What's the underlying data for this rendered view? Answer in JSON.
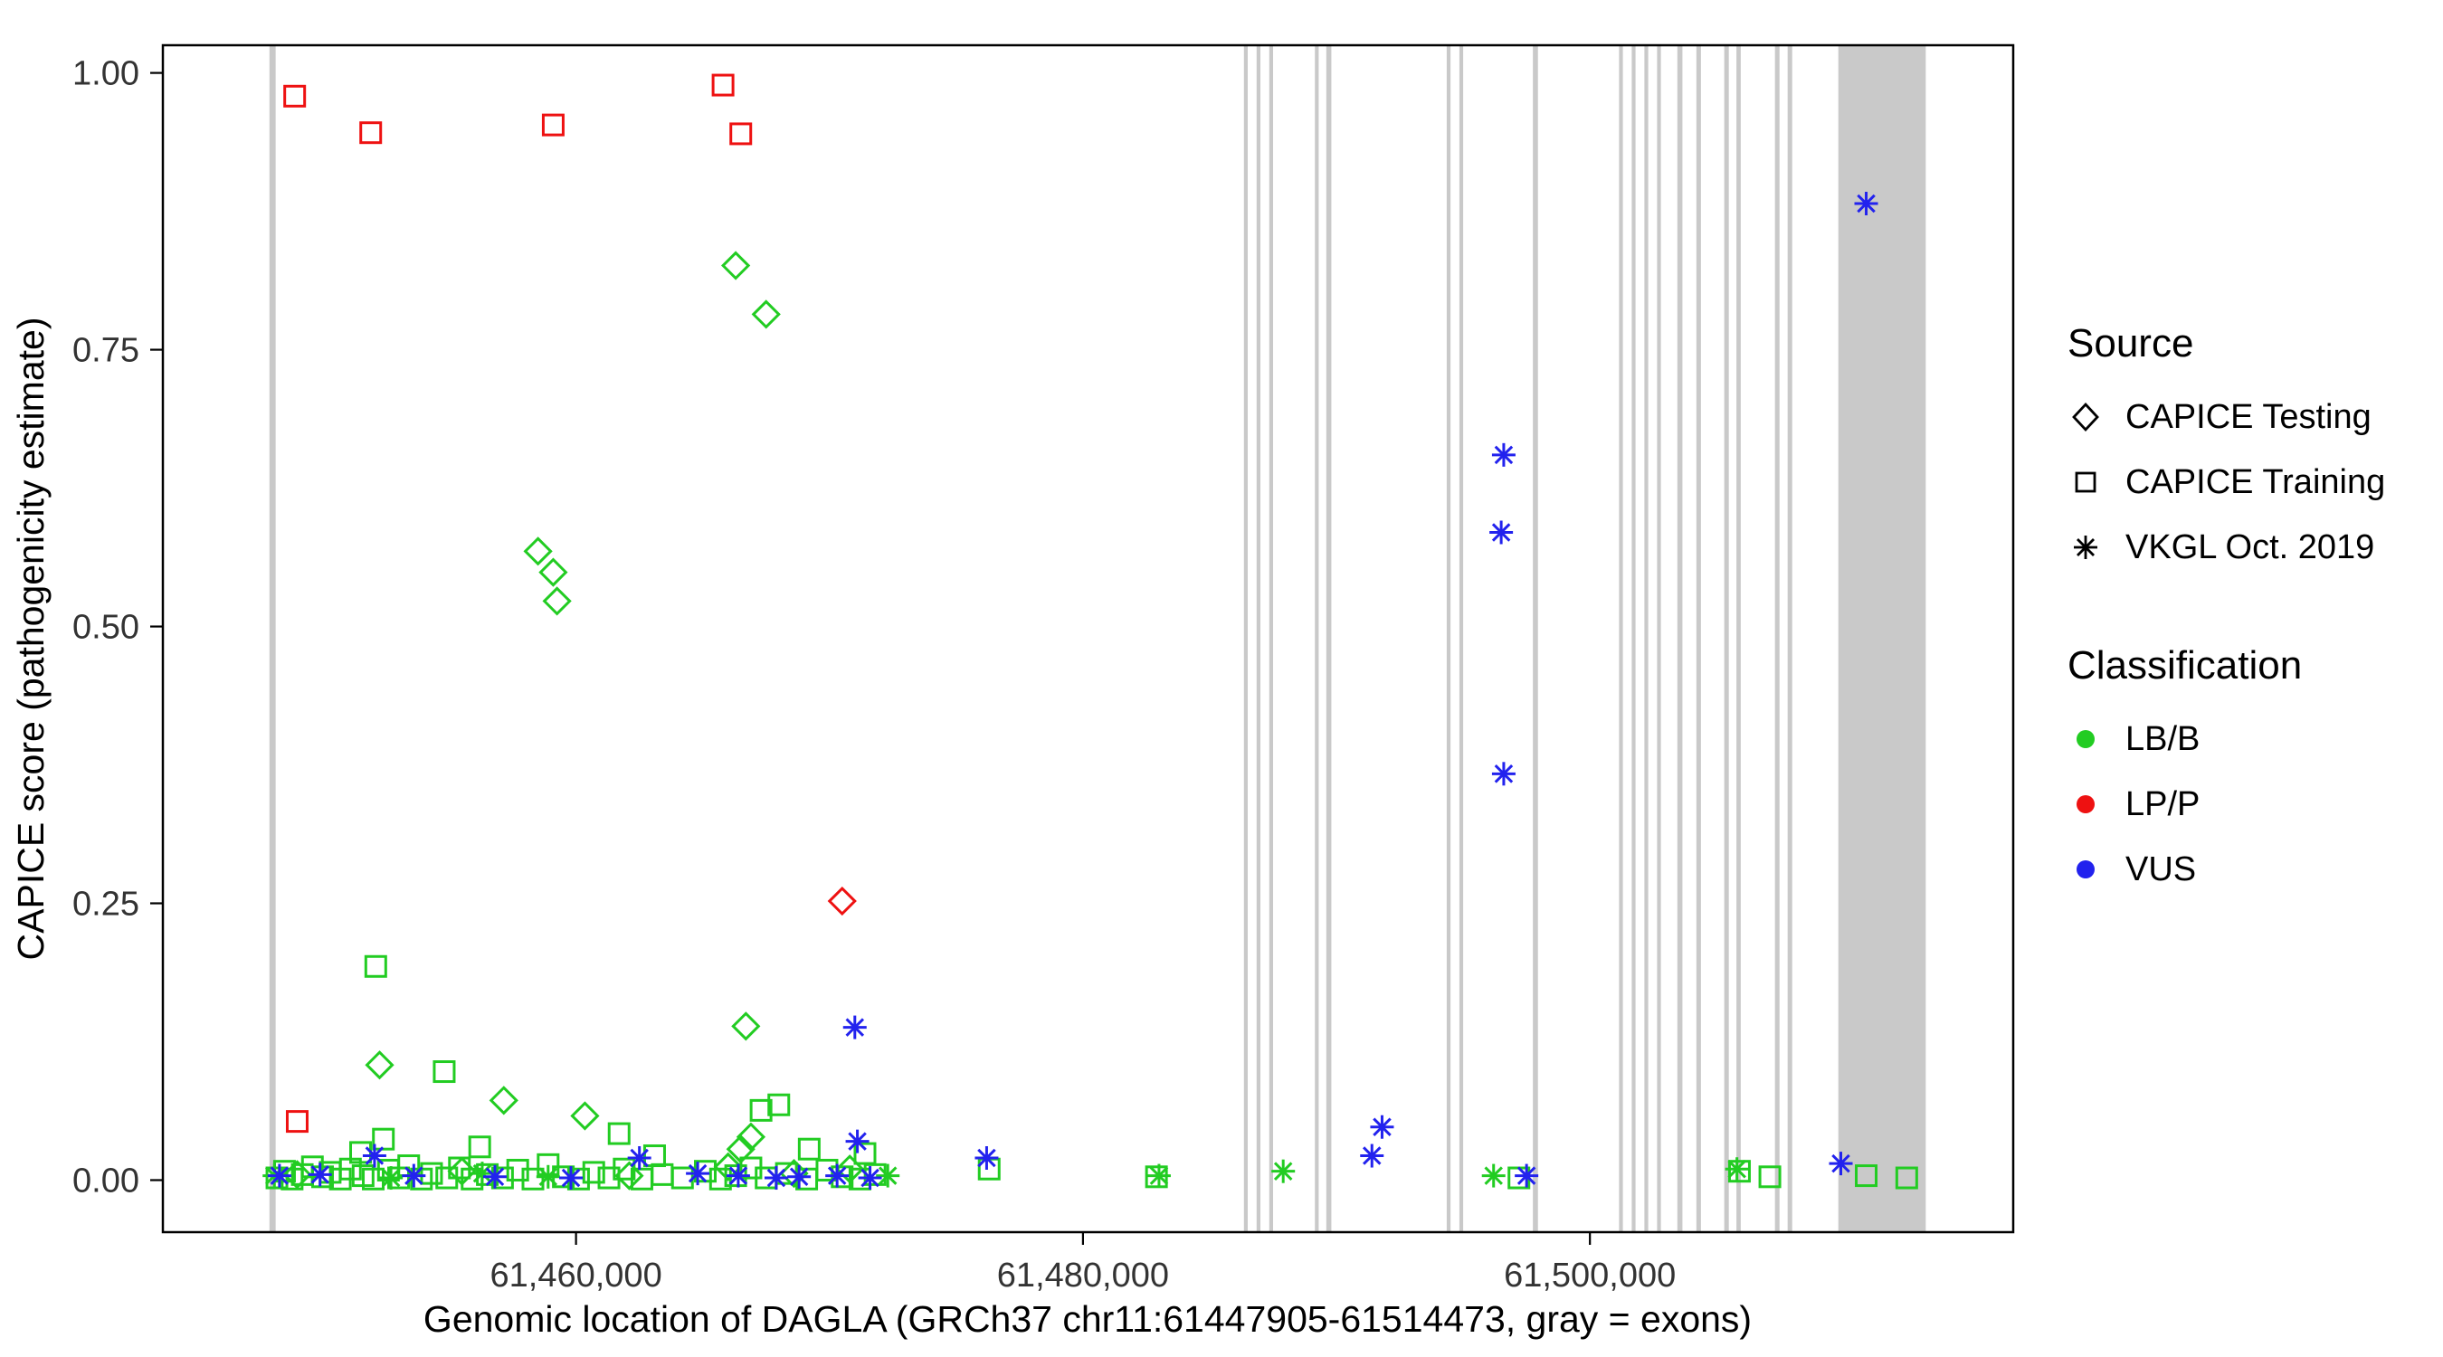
{
  "figure": {
    "xlabel": "Genomic location of DAGLA (GRCh37 chr11:61447905-61514473, gray = exons)",
    "ylabel": "CAPICE score (pathogenicity estimate)"
  },
  "legend": {
    "source": {
      "title": "Source",
      "items": [
        {
          "label": "CAPICE Testing",
          "marker": "diamond-open"
        },
        {
          "label": "CAPICE Training",
          "marker": "square-open"
        },
        {
          "label": "VKGL Oct. 2019",
          "marker": "asterisk"
        }
      ]
    },
    "classification": {
      "title": "Classification",
      "items": [
        {
          "label": "LB/B",
          "color": "#22cc22"
        },
        {
          "label": "LP/P",
          "color": "#ee1111"
        },
        {
          "label": "VUS",
          "color": "#2222ee"
        }
      ]
    }
  },
  "chart_data": {
    "type": "scatter",
    "title": "",
    "xlabel": "Genomic location of DAGLA (GRCh37 chr11:61447905-61514473, gray = exons)",
    "ylabel": "CAPICE score (pathogenicity estimate)",
    "xlim": [
      61443700,
      61516700
    ],
    "ylim": [
      -0.047,
      1.025
    ],
    "x_ticks": {
      "values": [
        61460000,
        61480000,
        61500000
      ],
      "labels": [
        "61,460,000",
        "61,480,000",
        "61,500,000"
      ]
    },
    "y_ticks": {
      "values": [
        0,
        0.25,
        0.5,
        0.75,
        1
      ],
      "labels": [
        "0.00",
        "0.25",
        "0.50",
        "0.75",
        "1.00"
      ]
    },
    "grid": false,
    "legend_position": "right",
    "exon_color": "#c9c9c9",
    "exons": [
      [
        61447905,
        61448150
      ],
      [
        61486350,
        61486500
      ],
      [
        61486850,
        61487000
      ],
      [
        61487350,
        61487500
      ],
      [
        61489150,
        61489300
      ],
      [
        61489600,
        61489800
      ],
      [
        61494350,
        61494500
      ],
      [
        61494850,
        61495000
      ],
      [
        61497750,
        61497950
      ],
      [
        61501150,
        61501300
      ],
      [
        61501650,
        61501800
      ],
      [
        61502150,
        61502300
      ],
      [
        61502650,
        61502800
      ],
      [
        61503450,
        61503650
      ],
      [
        61504200,
        61504380
      ],
      [
        61505300,
        61505480
      ],
      [
        61505780,
        61505950
      ],
      [
        61507300,
        61507480
      ],
      [
        61507800,
        61507980
      ],
      [
        61509800,
        61513250
      ]
    ],
    "series": [
      {
        "source": "CAPICE Testing",
        "classification": "LB/B",
        "marker": "diamond-open",
        "color": "#22cc22",
        "points": [
          [
            61466300,
            0.826
          ],
          [
            61467500,
            0.782
          ],
          [
            61458500,
            0.568
          ],
          [
            61459100,
            0.549
          ],
          [
            61459250,
            0.523
          ],
          [
            61466700,
            0.139
          ],
          [
            61452250,
            0.104
          ],
          [
            61457150,
            0.072
          ],
          [
            61460350,
            0.058
          ],
          [
            61466900,
            0.039
          ],
          [
            61466500,
            0.028
          ],
          [
            61449000,
            0.005
          ],
          [
            61455500,
            0.008
          ],
          [
            61462100,
            0.004
          ],
          [
            61466000,
            0.012
          ],
          [
            61468600,
            0.006
          ],
          [
            61470800,
            0.01
          ]
        ]
      },
      {
        "source": "CAPICE Testing",
        "classification": "LP/P",
        "marker": "diamond-open",
        "color": "#ee1111",
        "points": [
          [
            61470500,
            0.252
          ]
        ]
      },
      {
        "source": "CAPICE Training",
        "classification": "LB/B",
        "marker": "square-open",
        "color": "#22cc22",
        "points": [
          [
            61452100,
            0.193
          ],
          [
            61454800,
            0.098
          ],
          [
            61468000,
            0.068
          ],
          [
            61467300,
            0.063
          ],
          [
            61461700,
            0.042
          ],
          [
            61452400,
            0.037
          ],
          [
            61456200,
            0.03
          ],
          [
            61469200,
            0.028
          ],
          [
            61451500,
            0.025
          ],
          [
            61471400,
            0.024
          ],
          [
            61463100,
            0.022
          ],
          [
            61448200,
            0.002
          ],
          [
            61448500,
            0.008
          ],
          [
            61448800,
            0.001
          ],
          [
            61449200,
            0.005
          ],
          [
            61449600,
            0.012
          ],
          [
            61450000,
            0.003
          ],
          [
            61450300,
            0.007
          ],
          [
            61450700,
            0.001
          ],
          [
            61451100,
            0.01
          ],
          [
            61451600,
            0.004
          ],
          [
            61452000,
            0.001
          ],
          [
            61452600,
            0.009
          ],
          [
            61453000,
            0.002
          ],
          [
            61453400,
            0.013
          ],
          [
            61453900,
            0.001
          ],
          [
            61454300,
            0.006
          ],
          [
            61454900,
            0.002
          ],
          [
            61455400,
            0.011
          ],
          [
            61455900,
            0.001
          ],
          [
            61456500,
            0.005
          ],
          [
            61457100,
            0.002
          ],
          [
            61457700,
            0.009
          ],
          [
            61458300,
            0.001
          ],
          [
            61458900,
            0.014
          ],
          [
            61459500,
            0.003
          ],
          [
            61460100,
            0.001
          ],
          [
            61460700,
            0.007
          ],
          [
            61461300,
            0.002
          ],
          [
            61461900,
            0.01
          ],
          [
            61462600,
            0.001
          ],
          [
            61463400,
            0.005
          ],
          [
            61464200,
            0.002
          ],
          [
            61465100,
            0.008
          ],
          [
            61465700,
            0.001
          ],
          [
            61466300,
            0.004
          ],
          [
            61466900,
            0.011
          ],
          [
            61467500,
            0.002
          ],
          [
            61468300,
            0.006
          ],
          [
            61469100,
            0.001
          ],
          [
            61469900,
            0.009
          ],
          [
            61470500,
            0.003
          ],
          [
            61471200,
            0.001
          ],
          [
            61471800,
            0.005
          ],
          [
            61476300,
            0.01
          ],
          [
            61482900,
            0.003
          ],
          [
            61497200,
            0.002
          ],
          [
            61505900,
            0.008
          ],
          [
            61507100,
            0.003
          ],
          [
            61510900,
            0.004
          ],
          [
            61512500,
            0.002
          ]
        ]
      },
      {
        "source": "CAPICE Training",
        "classification": "LP/P",
        "marker": "square-open",
        "color": "#ee1111",
        "points": [
          [
            61448900,
            0.979
          ],
          [
            61451900,
            0.946
          ],
          [
            61459100,
            0.953
          ],
          [
            61465800,
            0.989
          ],
          [
            61466500,
            0.945
          ],
          [
            61449000,
            0.053
          ]
        ]
      },
      {
        "source": "VKGL Oct. 2019",
        "classification": "LB/B",
        "marker": "asterisk",
        "color": "#22cc22",
        "points": [
          [
            61448100,
            0.004
          ],
          [
            61452700,
            0.002
          ],
          [
            61456300,
            0.006
          ],
          [
            61458900,
            0.003
          ],
          [
            61472300,
            0.004
          ],
          [
            61483000,
            0.004
          ],
          [
            61487900,
            0.008
          ],
          [
            61496200,
            0.004
          ],
          [
            61505800,
            0.01
          ]
        ]
      },
      {
        "source": "VKGL Oct. 2019",
        "classification": "VUS",
        "marker": "asterisk",
        "color": "#2222ee",
        "points": [
          [
            61510900,
            0.882
          ],
          [
            61496600,
            0.655
          ],
          [
            61496500,
            0.585
          ],
          [
            61496600,
            0.367
          ],
          [
            61471000,
            0.138
          ],
          [
            61491800,
            0.048
          ],
          [
            61471100,
            0.035
          ],
          [
            61452050,
            0.022
          ],
          [
            61462500,
            0.02
          ],
          [
            61476200,
            0.02
          ],
          [
            61491400,
            0.022
          ],
          [
            61448300,
            0.004
          ],
          [
            61449900,
            0.005
          ],
          [
            61453600,
            0.004
          ],
          [
            61456800,
            0.003
          ],
          [
            61459800,
            0.002
          ],
          [
            61464800,
            0.006
          ],
          [
            61466400,
            0.004
          ],
          [
            61467900,
            0.002
          ],
          [
            61468800,
            0.003
          ],
          [
            61470300,
            0.004
          ],
          [
            61471600,
            0.002
          ],
          [
            61497500,
            0.004
          ],
          [
            61509900,
            0.015
          ]
        ]
      }
    ]
  }
}
